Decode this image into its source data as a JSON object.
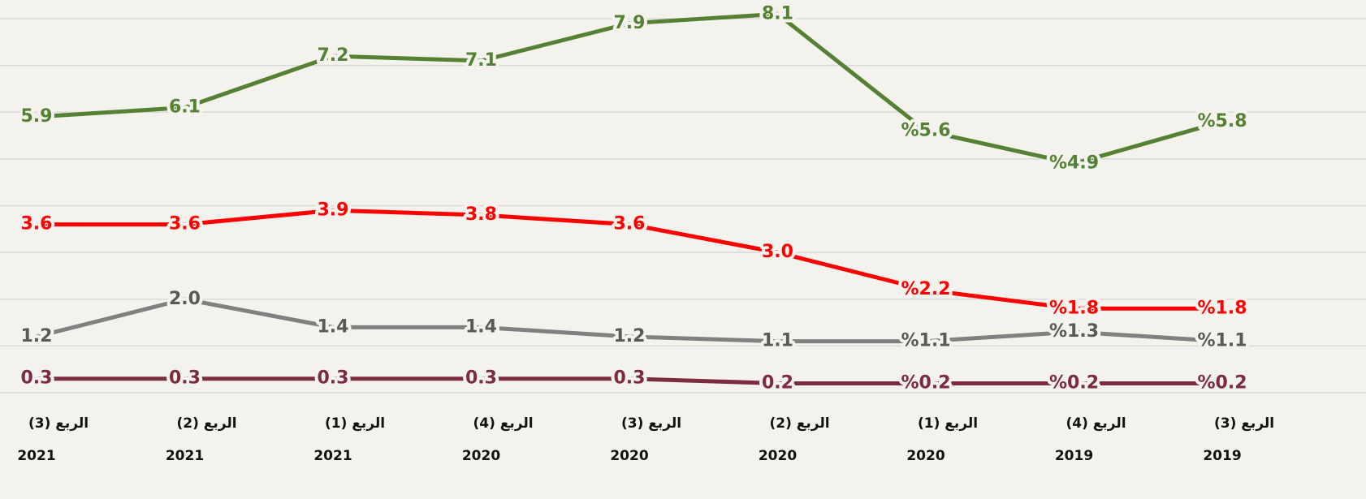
{
  "chart_data": {
    "type": "line",
    "categories": [
      "الربع (3)",
      "الربع (2)",
      "الربع (1)",
      "الربع (4)",
      "الربع (3)",
      "الربع (2)",
      "الربع (1)",
      "الربع (4)",
      "الربع (3)"
    ],
    "category_years": [
      "2021",
      "2021",
      "2021",
      "2020",
      "2020",
      "2020",
      "2020",
      "2019",
      "2019"
    ],
    "series": [
      {
        "color": "#548235",
        "values": [
          5.9,
          6.1,
          7.2,
          7.1,
          7.9,
          8.1,
          5.6,
          4.9,
          5.8
        ],
        "value_labels": [
          "5.9",
          "6.1",
          "7.2",
          "7.1",
          "7.9",
          "8.1",
          "%5.6",
          "%4.9",
          "%5.8"
        ]
      },
      {
        "color": "#ff0000",
        "values": [
          3.6,
          3.6,
          3.9,
          3.8,
          3.6,
          3.0,
          2.2,
          1.8,
          1.8
        ],
        "value_labels": [
          "3.6",
          "3.6",
          "3.9",
          "3.8",
          "3.6",
          "3.0",
          "%2.2",
          "%1.8",
          "%1.8"
        ]
      },
      {
        "color": "#808080",
        "values": [
          1.2,
          2.0,
          1.4,
          1.4,
          1.2,
          1.1,
          1.1,
          1.3,
          1.1
        ],
        "value_labels": [
          "1.2",
          "2.0",
          "1.4",
          "1.4",
          "1.2",
          "1.1",
          "%1.1",
          "%1.3",
          "%1.1"
        ]
      },
      {
        "color": "#7b2c3f",
        "values": [
          0.3,
          0.3,
          0.3,
          0.3,
          0.3,
          0.2,
          0.2,
          0.2,
          0.2
        ],
        "value_labels": [
          "0.3",
          "0.3",
          "0.3",
          "0.3",
          "0.3",
          "0.2",
          "%0.2",
          "%0.2",
          "%0.2"
        ]
      }
    ],
    "ylim": [
      0,
      8.4
    ],
    "yticks": [
      0,
      1,
      2,
      3,
      4,
      5,
      6,
      7,
      8
    ],
    "grid": true
  }
}
